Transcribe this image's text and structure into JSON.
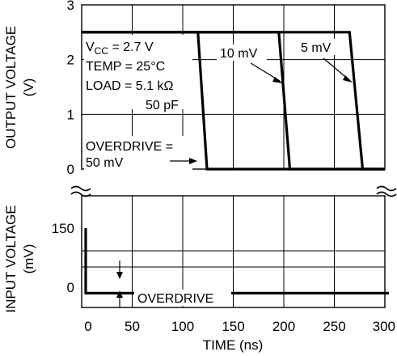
{
  "chart_data": {
    "type": "line",
    "xlabel": "TIME (ns)",
    "x_ticks": [
      "0",
      "50",
      "100",
      "150",
      "200",
      "250",
      "300"
    ],
    "xlim": [
      0,
      300
    ],
    "panels": {
      "top": {
        "ylabel_line1": "OUTPUT VOLTAGE",
        "ylabel_line2": "(V)",
        "ylim": [
          0,
          3
        ],
        "y_ticks": [
          "0",
          "1",
          "2",
          "3"
        ],
        "series": [
          {
            "name": "OVERDRIVE = 50 mV",
            "x": [
              0,
              115,
              124,
              300
            ],
            "y": [
              2.5,
              2.5,
              0,
              0
            ]
          },
          {
            "name": "10 mV",
            "x": [
              0,
              195,
              206,
              300
            ],
            "y": [
              2.5,
              2.5,
              0,
              0
            ]
          },
          {
            "name": "5 mV",
            "x": [
              0,
              265,
              278,
              300
            ],
            "y": [
              2.5,
              2.5,
              0,
              0
            ]
          }
        ]
      },
      "bottom": {
        "ylabel_line1": "INPUT VOLTAGE",
        "ylabel_line2": "(mV)",
        "ylim": [
          -50,
          175
        ],
        "y_ticks": [
          "150",
          "0"
        ],
        "series": [
          {
            "name": "input",
            "x": [
              0,
              0,
              300
            ],
            "y": [
              150,
              -15,
              -15
            ]
          }
        ]
      }
    },
    "conditions": {
      "vcc_prefix": "V",
      "vcc_sub": "CC",
      "vcc_value": " = 2.7 V",
      "temp": "TEMP = 25°C",
      "load_line1": "LOAD = 5.1 kΩ",
      "load_line2": "50 pF"
    },
    "annotations": {
      "overdrive_line1": "OVERDRIVE =",
      "overdrive_line2": "50 mV",
      "label_10mv": "10 mV",
      "label_5mv": "5 mV",
      "overdrive_bottom": "OVERDRIVE"
    },
    "grid": true
  }
}
